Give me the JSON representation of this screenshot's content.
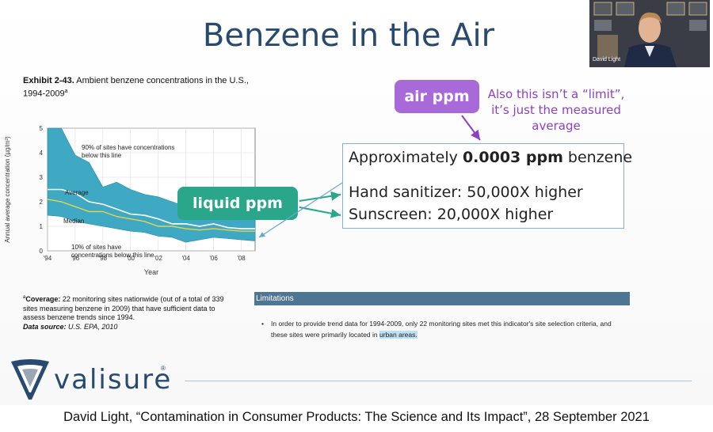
{
  "slide": {
    "title": "Benzene in the Air",
    "exhibit_label": "Exhibit 2-43.",
    "exhibit_title": "Ambient benzene concentrations in the U.S., 1994-2009",
    "exhibit_superscript": "a",
    "coverage_label": "Coverage:",
    "coverage_text": "22 monitoring sites nationwide (out of a total of 339 sites measuring benzene in 2009) that have sufficient data to assess benzene trends since 1994.",
    "coverage_superscript": "a",
    "source_label": "Data source:",
    "source_text": "U.S. EPA, 2010",
    "box": {
      "line1_prefix": "Approximately ",
      "line1_bold": "0.0003 ppm",
      "line1_suffix": " benzene",
      "line2": "Hand sanitizer: 50,000X higher",
      "line3": "Sunscreen: 20,000X higher"
    },
    "liquid_label": "liquid ppm",
    "air_label": "air ppm",
    "note": "Also this isn’t a “limit”, it’s just the measured average",
    "limitations_header": "Limitations",
    "limitations_text_pre": "In order to provide trend data for 1994-2009, only 22 monitoring sites met this indicator's site selection criteria, and these sites were primarily located in ",
    "limitations_highlight": "urban areas.",
    "logo_text": "valisure",
    "logo_mark": "®",
    "webcam_name": "David Light"
  },
  "caption": "David Light, “Contamination in Consumer Products: The Science and Its Impact”, 28 September 2021",
  "colors": {
    "title": "#274a6e",
    "band": "#3fa8c2",
    "average_line": "#ffffff",
    "median_line": "#e8d34a",
    "liquid_pill": "#2aa78a",
    "air_pill": "#a86ad8",
    "note": "#8e3fc6",
    "limitations_bar": "#4f7594"
  },
  "chart_data": {
    "type": "area",
    "ylabel": "Annual average concentration (µg/m³)",
    "xlabel": "Year",
    "x": [
      1994,
      1995,
      1996,
      1997,
      1998,
      1999,
      2000,
      2001,
      2002,
      2003,
      2004,
      2005,
      2006,
      2007,
      2008,
      2009
    ],
    "x_tick_labels": [
      "'94",
      "'96",
      "'98",
      "'00",
      "'02",
      "'04",
      "'06",
      "'08"
    ],
    "x_tick_values": [
      1994,
      1996,
      1998,
      2000,
      2002,
      2004,
      2006,
      2008
    ],
    "y_tick_labels": [
      "0",
      "1",
      "2",
      "3",
      "4",
      "5"
    ],
    "ylim": [
      0,
      5
    ],
    "series": [
      {
        "name": "90% of sites have concentrations below this line",
        "values": [
          5.0,
          5.0,
          3.9,
          3.6,
          2.6,
          2.8,
          2.5,
          2.3,
          2.2,
          2.0,
          1.8,
          1.8,
          1.9,
          1.8,
          1.7,
          1.5
        ]
      },
      {
        "name": "Average",
        "values": [
          2.5,
          2.5,
          2.35,
          2.0,
          1.9,
          1.7,
          1.5,
          1.45,
          1.3,
          1.1,
          1.1,
          1.0,
          1.1,
          0.95,
          0.9,
          0.9
        ]
      },
      {
        "name": "Median",
        "values": [
          2.1,
          2.0,
          1.8,
          1.6,
          1.6,
          1.4,
          1.3,
          1.2,
          1.0,
          1.0,
          0.9,
          0.85,
          0.9,
          0.85,
          0.8,
          0.8
        ]
      },
      {
        "name": "10% of sites have concentrations below this line",
        "values": [
          1.45,
          1.4,
          1.2,
          1.1,
          1.0,
          0.9,
          0.8,
          0.75,
          0.6,
          0.55,
          0.35,
          0.45,
          0.55,
          0.5,
          0.45,
          0.4
        ]
      }
    ],
    "annotations": [
      "90% of sites have concentrations below this line",
      "Average",
      "Median",
      "10% of sites have concentrations below this line"
    ]
  }
}
